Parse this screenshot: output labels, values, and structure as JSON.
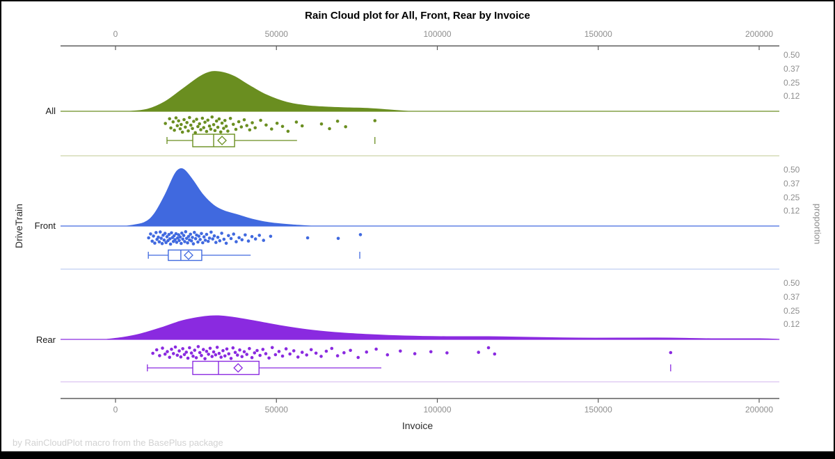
{
  "page": {
    "footer": "by RainCloudPlot macro from the BasePlus package"
  },
  "chart_data": {
    "type": "raincloud",
    "title": "Rain Cloud plot for All, Front, Rear by Invoice",
    "xlabel": "Invoice",
    "ylabel": "DriveTrain",
    "y2label": "proportion",
    "x_range": [
      -17000,
      206300
    ],
    "x_ticks": [
      0,
      50000,
      100000,
      150000,
      200000
    ],
    "x_tick_labels": [
      "0",
      "50000",
      "100000",
      "150000",
      "200000"
    ],
    "proportion_ticks": [
      "0.50",
      "0.37",
      "0.25",
      "0.12"
    ],
    "grid": false,
    "legend": "none",
    "groups": [
      {
        "name": "All",
        "color": "#6a8e20",
        "pale_color": "#ccd3a6",
        "density": [
          [
            4500,
            0
          ],
          [
            9900,
            3
          ],
          [
            15400,
            14
          ],
          [
            20800,
            32
          ],
          [
            26200,
            50
          ],
          [
            29800,
            57
          ],
          [
            33300,
            56
          ],
          [
            37000,
            50
          ],
          [
            41300,
            38
          ],
          [
            46700,
            24
          ],
          [
            53200,
            13
          ],
          [
            59700,
            8
          ],
          [
            66200,
            6
          ],
          [
            72600,
            5
          ],
          [
            79100,
            4
          ],
          [
            85200,
            2
          ],
          [
            91000,
            0
          ]
        ],
        "box": {
          "whisker_low": 16000,
          "q1": 24000,
          "median": 30500,
          "q3": 37000,
          "whisker_high": 56400,
          "mean": 33100,
          "outliers": [
            80600
          ]
        },
        "points": [
          [
            15500,
            0.42
          ],
          [
            16800,
            0.15
          ],
          [
            17200,
            0.68
          ],
          [
            17900,
            0.33
          ],
          [
            18300,
            0.81
          ],
          [
            18800,
            0.1
          ],
          [
            19200,
            0.55
          ],
          [
            19600,
            0.27
          ],
          [
            20100,
            0.73
          ],
          [
            20400,
            0.48
          ],
          [
            20800,
            0.92
          ],
          [
            21300,
            0.2
          ],
          [
            21700,
            0.63
          ],
          [
            22200,
            0.37
          ],
          [
            22600,
            0.85
          ],
          [
            23000,
            0.08
          ],
          [
            23400,
            0.52
          ],
          [
            23900,
            0.71
          ],
          [
            24300,
            0.3
          ],
          [
            24800,
            0.95
          ],
          [
            25200,
            0.18
          ],
          [
            25600,
            0.6
          ],
          [
            26100,
            0.44
          ],
          [
            26500,
            0.78
          ],
          [
            27000,
            0.12
          ],
          [
            27400,
            0.66
          ],
          [
            27800,
            0.35
          ],
          [
            28300,
            0.88
          ],
          [
            28700,
            0.23
          ],
          [
            29200,
            0.57
          ],
          [
            29600,
            0.75
          ],
          [
            30000,
            0.05
          ],
          [
            30500,
            0.49
          ],
          [
            30900,
            0.83
          ],
          [
            31400,
            0.28
          ],
          [
            31800,
            0.64
          ],
          [
            32200,
            0.16
          ],
          [
            32700,
            0.91
          ],
          [
            33100,
            0.4
          ],
          [
            33600,
            0.7
          ],
          [
            34000,
            0.25
          ],
          [
            34400,
            0.58
          ],
          [
            34900,
            0.86
          ],
          [
            35700,
            0.13
          ],
          [
            36600,
            0.47
          ],
          [
            37400,
            0.76
          ],
          [
            38300,
            0.32
          ],
          [
            39100,
            0.62
          ],
          [
            40000,
            0.21
          ],
          [
            40800,
            0.54
          ],
          [
            41700,
            0.79
          ],
          [
            42500,
            0.38
          ],
          [
            43400,
            0.67
          ],
          [
            45100,
            0.24
          ],
          [
            46800,
            0.51
          ],
          [
            48500,
            0.74
          ],
          [
            50200,
            0.41
          ],
          [
            51900,
            0.59
          ],
          [
            53600,
            0.87
          ],
          [
            56200,
            0.34
          ],
          [
            58000,
            0.56
          ],
          [
            64000,
            0.45
          ],
          [
            66500,
            0.72
          ],
          [
            69000,
            0.29
          ],
          [
            71500,
            0.61
          ],
          [
            80600,
            0.26
          ]
        ]
      },
      {
        "name": "Front",
        "color": "#4069df",
        "pale_color": "#c0cdf2",
        "density": [
          [
            3500,
            0
          ],
          [
            8900,
            5
          ],
          [
            12100,
            18
          ],
          [
            15400,
            45
          ],
          [
            18200,
            73
          ],
          [
            19900,
            82
          ],
          [
            21600,
            80
          ],
          [
            24200,
            65
          ],
          [
            27200,
            45
          ],
          [
            30500,
            30
          ],
          [
            33700,
            22
          ],
          [
            38100,
            16
          ],
          [
            42400,
            10
          ],
          [
            47800,
            5
          ],
          [
            54300,
            2
          ],
          [
            60800,
            0
          ]
        ],
        "box": {
          "whisker_low": 10200,
          "q1": 16400,
          "median": 20300,
          "q3": 26800,
          "whisker_high": 42000,
          "mean": 22700,
          "outliers": [
            75900
          ]
        },
        "points": [
          [
            10300,
            0.5
          ],
          [
            10900,
            0.22
          ],
          [
            11400,
            0.74
          ],
          [
            11800,
            0.37
          ],
          [
            12200,
            0.88
          ],
          [
            12600,
            0.12
          ],
          [
            12900,
            0.61
          ],
          [
            13300,
            0.45
          ],
          [
            13600,
            0.79
          ],
          [
            13900,
            0.08
          ],
          [
            14200,
            0.53
          ],
          [
            14500,
            0.91
          ],
          [
            14800,
            0.31
          ],
          [
            15100,
            0.66
          ],
          [
            15400,
            0.18
          ],
          [
            15700,
            0.84
          ],
          [
            16000,
            0.42
          ],
          [
            16300,
            0.7
          ],
          [
            16600,
            0.26
          ],
          [
            16900,
            0.57
          ],
          [
            17100,
            0.95
          ],
          [
            17400,
            0.14
          ],
          [
            17700,
            0.48
          ],
          [
            18000,
            0.76
          ],
          [
            18200,
            0.35
          ],
          [
            18500,
            0.63
          ],
          [
            18800,
            0.2
          ],
          [
            19000,
            0.82
          ],
          [
            19300,
            0.51
          ],
          [
            19600,
            0.28
          ],
          [
            19800,
            0.69
          ],
          [
            20100,
            0.44
          ],
          [
            20400,
            0.9
          ],
          [
            20600,
            0.16
          ],
          [
            20900,
            0.59
          ],
          [
            21200,
            0.33
          ],
          [
            21500,
            0.77
          ],
          [
            21800,
            0.06
          ],
          [
            22100,
            0.54
          ],
          [
            22400,
            0.86
          ],
          [
            22700,
            0.4
          ],
          [
            23000,
            0.65
          ],
          [
            23300,
            0.24
          ],
          [
            23600,
            0.72
          ],
          [
            23900,
            0.47
          ],
          [
            24200,
            0.93
          ],
          [
            24500,
            0.11
          ],
          [
            24900,
            0.56
          ],
          [
            25200,
            0.3
          ],
          [
            25600,
            0.8
          ],
          [
            25900,
            0.38
          ],
          [
            26300,
            0.62
          ],
          [
            26700,
            0.19
          ],
          [
            27100,
            0.85
          ],
          [
            27500,
            0.43
          ],
          [
            27900,
            0.67
          ],
          [
            28300,
            0.25
          ],
          [
            28800,
            0.75
          ],
          [
            29200,
            0.52
          ],
          [
            29700,
            0.09
          ],
          [
            30200,
            0.58
          ],
          [
            30700,
            0.36
          ],
          [
            31200,
            0.83
          ],
          [
            31800,
            0.46
          ],
          [
            32400,
            0.71
          ],
          [
            33000,
            0.17
          ],
          [
            33700,
            0.6
          ],
          [
            34400,
            0.89
          ],
          [
            35100,
            0.34
          ],
          [
            35900,
            0.55
          ],
          [
            36700,
            0.23
          ],
          [
            37500,
            0.78
          ],
          [
            38400,
            0.49
          ],
          [
            39300,
            0.64
          ],
          [
            40300,
            0.29
          ],
          [
            41300,
            0.73
          ],
          [
            42400,
            0.41
          ],
          [
            43500,
            0.58
          ],
          [
            44700,
            0.32
          ],
          [
            46000,
            0.68
          ],
          [
            48200,
            0.39
          ],
          [
            59700,
            0.5
          ],
          [
            69200,
            0.54
          ],
          [
            76100,
            0.27
          ]
        ]
      },
      {
        "name": "Rear",
        "color": "#8a2ae0",
        "pale_color": "#d9c2f0",
        "density": [
          [
            -3000,
            0
          ],
          [
            2400,
            3
          ],
          [
            7800,
            8
          ],
          [
            14300,
            17
          ],
          [
            20800,
            27
          ],
          [
            27700,
            33
          ],
          [
            32000,
            34
          ],
          [
            36300,
            32
          ],
          [
            42800,
            27
          ],
          [
            51000,
            20
          ],
          [
            59700,
            14
          ],
          [
            68300,
            10
          ],
          [
            79100,
            7
          ],
          [
            89900,
            5
          ],
          [
            102900,
            4
          ],
          [
            115900,
            4
          ],
          [
            128900,
            3
          ],
          [
            144000,
            2
          ],
          [
            159100,
            2
          ],
          [
            172100,
            2
          ],
          [
            185100,
            1
          ],
          [
            200200,
            1
          ],
          [
            206300,
            0
          ]
        ],
        "box": {
          "whisker_low": 9900,
          "q1": 24000,
          "median": 32000,
          "q3": 44600,
          "whisker_high": 82600,
          "mean": 38100,
          "outliers": [
            172500
          ]
        },
        "points": [
          [
            11600,
            0.55
          ],
          [
            12800,
            0.3
          ],
          [
            13700,
            0.72
          ],
          [
            14600,
            0.18
          ],
          [
            15400,
            0.61
          ],
          [
            16100,
            0.43
          ],
          [
            16800,
            0.84
          ],
          [
            17400,
            0.26
          ],
          [
            18000,
            0.57
          ],
          [
            18600,
            0.1
          ],
          [
            19200,
            0.69
          ],
          [
            19800,
            0.38
          ],
          [
            20300,
            0.81
          ],
          [
            20900,
            0.22
          ],
          [
            21400,
            0.64
          ],
          [
            22000,
            0.47
          ],
          [
            22500,
            0.9
          ],
          [
            23000,
            0.15
          ],
          [
            23600,
            0.53
          ],
          [
            24100,
            0.76
          ],
          [
            24600,
            0.33
          ],
          [
            25100,
            0.87
          ],
          [
            25700,
            0.07
          ],
          [
            26200,
            0.5
          ],
          [
            26700,
            0.71
          ],
          [
            27300,
            0.28
          ],
          [
            27800,
            0.94
          ],
          [
            28300,
            0.41
          ],
          [
            28900,
            0.62
          ],
          [
            29400,
            0.19
          ],
          [
            30000,
            0.78
          ],
          [
            30500,
            0.45
          ],
          [
            31100,
            0.66
          ],
          [
            31600,
            0.12
          ],
          [
            32200,
            0.56
          ],
          [
            32800,
            0.83
          ],
          [
            33400,
            0.36
          ],
          [
            34000,
            0.74
          ],
          [
            34600,
            0.24
          ],
          [
            35200,
            0.59
          ],
          [
            35900,
            0.92
          ],
          [
            36500,
            0.16
          ],
          [
            37200,
            0.49
          ],
          [
            37900,
            0.68
          ],
          [
            38600,
            0.31
          ],
          [
            39300,
            0.79
          ],
          [
            40000,
            0.44
          ],
          [
            40800,
            0.63
          ],
          [
            41600,
            0.21
          ],
          [
            42400,
            0.86
          ],
          [
            43200,
            0.52
          ],
          [
            44000,
            0.35
          ],
          [
            44900,
            0.7
          ],
          [
            45800,
            0.27
          ],
          [
            46700,
            0.58
          ],
          [
            47700,
            0.89
          ],
          [
            48700,
            0.14
          ],
          [
            49700,
            0.65
          ],
          [
            50800,
            0.42
          ],
          [
            51900,
            0.75
          ],
          [
            53000,
            0.23
          ],
          [
            54200,
            0.6
          ],
          [
            55400,
            0.37
          ],
          [
            56700,
            0.82
          ],
          [
            58000,
            0.48
          ],
          [
            59400,
            0.67
          ],
          [
            60800,
            0.29
          ],
          [
            62300,
            0.54
          ],
          [
            63900,
            0.77
          ],
          [
            65500,
            0.4
          ],
          [
            67200,
            0.2
          ],
          [
            69000,
            0.73
          ],
          [
            71000,
            0.51
          ],
          [
            73000,
            0.34
          ],
          [
            75400,
            0.85
          ],
          [
            78000,
            0.46
          ],
          [
            81000,
            0.25
          ],
          [
            84500,
            0.66
          ],
          [
            88500,
            0.39
          ],
          [
            93000,
            0.58
          ],
          [
            98000,
            0.44
          ],
          [
            103000,
            0.52
          ],
          [
            112800,
            0.48
          ],
          [
            115900,
            0.15
          ],
          [
            117800,
            0.6
          ],
          [
            172500,
            0.5
          ]
        ]
      }
    ]
  }
}
